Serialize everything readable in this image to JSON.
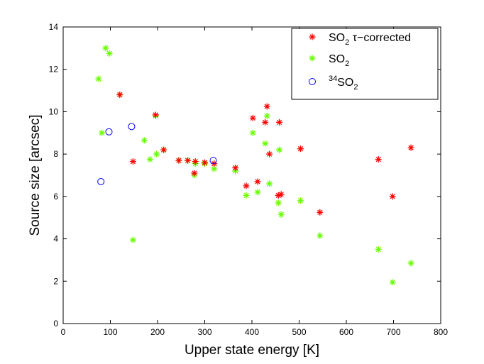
{
  "chart_data": {
    "type": "scatter",
    "xlabel": "Upper state energy [K]",
    "ylabel": "Source size [arcsec]",
    "xlim": [
      0,
      800
    ],
    "ylim": [
      0,
      14
    ],
    "xticks": [
      0,
      100,
      200,
      300,
      400,
      500,
      600,
      700,
      800
    ],
    "yticks": [
      0,
      2,
      4,
      6,
      8,
      10,
      12,
      14
    ],
    "grid": false,
    "legend_position": "top-right",
    "series": [
      {
        "name": "SO2 τ-corrected",
        "legend": {
          "base": "SO",
          "sub": "2",
          "rest": " τ−corrected"
        },
        "marker": "asterisk",
        "color": "#ff0000",
        "points": [
          [
            120,
            10.8
          ],
          [
            196,
            9.85
          ],
          [
            148,
            7.65
          ],
          [
            213,
            8.2
          ],
          [
            245,
            7.7
          ],
          [
            264,
            7.7
          ],
          [
            280,
            7.65
          ],
          [
            278,
            7.1
          ],
          [
            300,
            7.6
          ],
          [
            320,
            7.55
          ],
          [
            365,
            7.35
          ],
          [
            388,
            6.5
          ],
          [
            402,
            9.7
          ],
          [
            412,
            6.7
          ],
          [
            428,
            9.5
          ],
          [
            432,
            10.25
          ],
          [
            437,
            8.0
          ],
          [
            456,
            6.05
          ],
          [
            458,
            9.5
          ],
          [
            462,
            6.1
          ],
          [
            503,
            8.25
          ],
          [
            544,
            5.25
          ],
          [
            668,
            7.75
          ],
          [
            698,
            6.0
          ],
          [
            737,
            8.3
          ]
        ]
      },
      {
        "name": "SO2",
        "legend": {
          "base": "SO",
          "sub": "2",
          "rest": ""
        },
        "marker": "asterisk",
        "color": "#66ff00",
        "points": [
          [
            75,
            11.55
          ],
          [
            90,
            13.0
          ],
          [
            98,
            12.75
          ],
          [
            82,
            9.0
          ],
          [
            120,
            10.8
          ],
          [
            196,
            9.8
          ],
          [
            172,
            8.65
          ],
          [
            184,
            7.75
          ],
          [
            198,
            8.0
          ],
          [
            213,
            8.2
          ],
          [
            148,
            3.95
          ],
          [
            245,
            7.7
          ],
          [
            264,
            7.7
          ],
          [
            280,
            7.55
          ],
          [
            278,
            7.0
          ],
          [
            300,
            7.55
          ],
          [
            320,
            7.3
          ],
          [
            365,
            7.2
          ],
          [
            388,
            6.05
          ],
          [
            402,
            9.0
          ],
          [
            412,
            6.2
          ],
          [
            428,
            8.5
          ],
          [
            432,
            9.8
          ],
          [
            437,
            6.6
          ],
          [
            456,
            5.7
          ],
          [
            458,
            8.2
          ],
          [
            462,
            5.15
          ],
          [
            503,
            5.8
          ],
          [
            544,
            4.15
          ],
          [
            668,
            3.5
          ],
          [
            698,
            1.95
          ],
          [
            737,
            2.85
          ]
        ]
      },
      {
        "name": "34SO2",
        "legend": {
          "sup": "34",
          "base": "SO",
          "sub": "2"
        },
        "marker": "circle",
        "color": "#0000ff",
        "points": [
          [
            80,
            6.7
          ],
          [
            97,
            9.05
          ],
          [
            145,
            9.3
          ],
          [
            318,
            7.7
          ]
        ]
      }
    ]
  }
}
